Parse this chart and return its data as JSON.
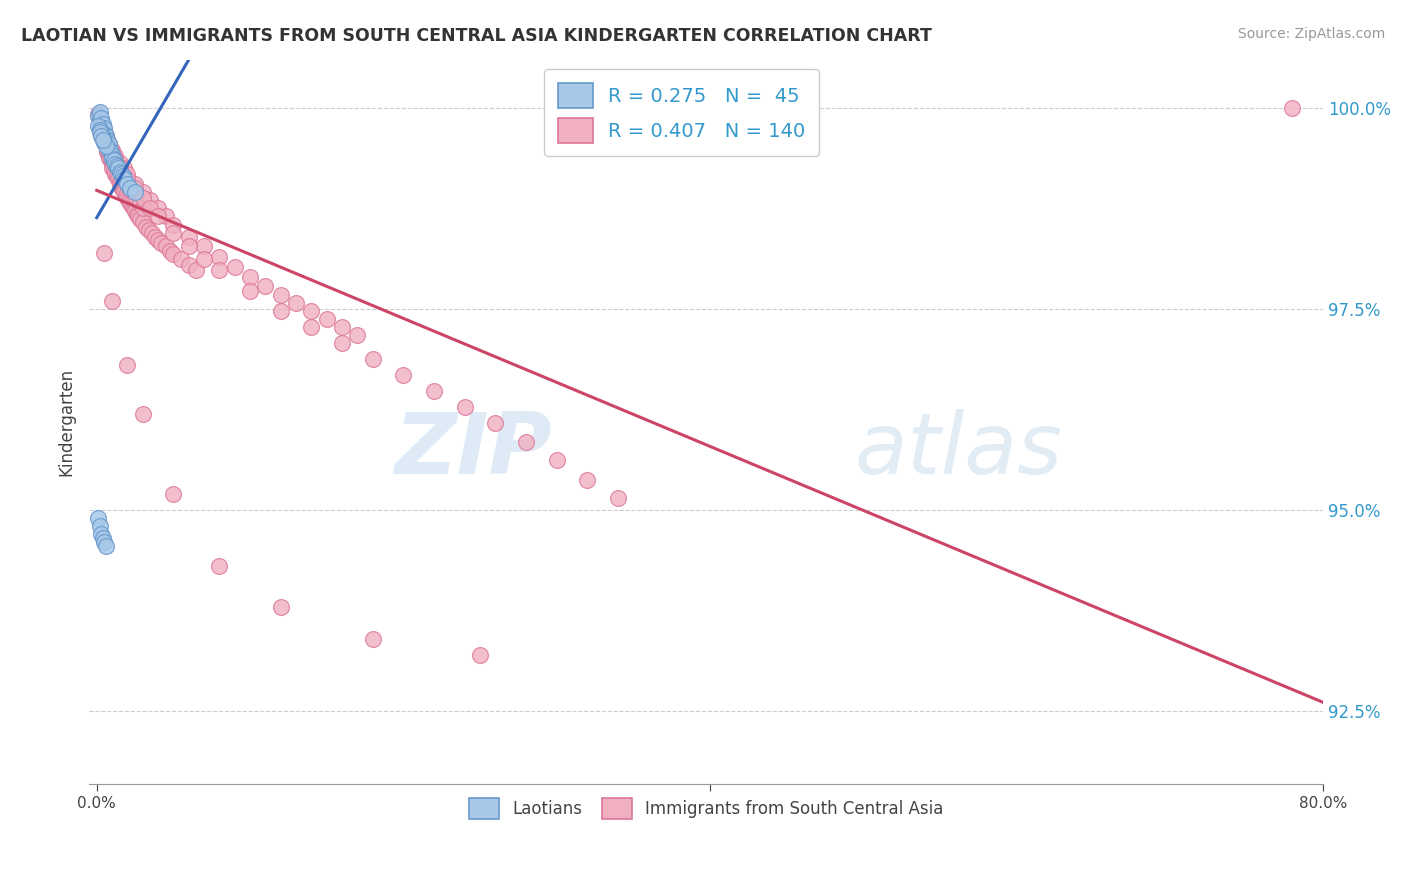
{
  "title": "LAOTIAN VS IMMIGRANTS FROM SOUTH CENTRAL ASIA KINDERGARTEN CORRELATION CHART",
  "source": "Source: ZipAtlas.com",
  "ylabel": "Kindergarten",
  "ytick_labels": [
    "92.5%",
    "95.0%",
    "97.5%",
    "100.0%"
  ],
  "ytick_values": [
    0.925,
    0.95,
    0.975,
    1.0
  ],
  "blue_R": 0.275,
  "blue_N": 45,
  "pink_R": 0.407,
  "pink_N": 140,
  "blue_color": "#a8c8e8",
  "pink_color": "#f0b0c0",
  "blue_edge": "#6699cc",
  "pink_edge": "#dd7799",
  "trend_blue": "#3366bb",
  "trend_pink": "#cc4466",
  "watermark_zip": "ZIP",
  "watermark_atlas": "atlas",
  "legend_blue_label": "Laotians",
  "legend_pink_label": "Immigrants from South Central Asia",
  "xlim": [
    -0.005,
    0.8
  ],
  "ylim": [
    0.916,
    1.006
  ],
  "blue_points_x": [
    0.001,
    0.002,
    0.002,
    0.003,
    0.003,
    0.003,
    0.004,
    0.004,
    0.005,
    0.005,
    0.006,
    0.006,
    0.007,
    0.007,
    0.008,
    0.008,
    0.009,
    0.01,
    0.01,
    0.011,
    0.012,
    0.013,
    0.014,
    0.015,
    0.016,
    0.017,
    0.018,
    0.02,
    0.022,
    0.025,
    0.001,
    0.002,
    0.003,
    0.004,
    0.005,
    0.006,
    0.002,
    0.003,
    0.004,
    0.001,
    0.002,
    0.003,
    0.004,
    0.005,
    0.006
  ],
  "blue_points_y": [
    0.999,
    0.9985,
    0.9995,
    0.9982,
    0.9988,
    0.9975,
    0.998,
    0.9972,
    0.9975,
    0.9968,
    0.9965,
    0.9958,
    0.996,
    0.9952,
    0.9955,
    0.9948,
    0.9945,
    0.9942,
    0.9938,
    0.9935,
    0.993,
    0.9928,
    0.9925,
    0.992,
    0.9918,
    0.9915,
    0.9912,
    0.9905,
    0.99,
    0.9895,
    0.9978,
    0.9972,
    0.9968,
    0.9962,
    0.9958,
    0.9952,
    0.997,
    0.9965,
    0.996,
    0.949,
    0.948,
    0.947,
    0.9465,
    0.946,
    0.9455
  ],
  "pink_points_x": [
    0.001,
    0.002,
    0.002,
    0.003,
    0.003,
    0.004,
    0.004,
    0.005,
    0.005,
    0.006,
    0.006,
    0.007,
    0.007,
    0.008,
    0.008,
    0.009,
    0.01,
    0.01,
    0.011,
    0.012,
    0.013,
    0.014,
    0.015,
    0.015,
    0.016,
    0.017,
    0.018,
    0.019,
    0.02,
    0.021,
    0.022,
    0.023,
    0.024,
    0.025,
    0.026,
    0.027,
    0.028,
    0.03,
    0.032,
    0.034,
    0.036,
    0.038,
    0.04,
    0.042,
    0.045,
    0.048,
    0.05,
    0.055,
    0.06,
    0.065,
    0.003,
    0.004,
    0.005,
    0.006,
    0.007,
    0.008,
    0.009,
    0.01,
    0.012,
    0.015,
    0.018,
    0.02,
    0.022,
    0.025,
    0.028,
    0.03,
    0.003,
    0.005,
    0.007,
    0.01,
    0.002,
    0.003,
    0.004,
    0.005,
    0.006,
    0.007,
    0.008,
    0.01,
    0.012,
    0.015,
    0.018,
    0.02,
    0.025,
    0.03,
    0.035,
    0.04,
    0.045,
    0.05,
    0.06,
    0.07,
    0.08,
    0.09,
    0.1,
    0.11,
    0.12,
    0.13,
    0.14,
    0.15,
    0.16,
    0.17,
    0.002,
    0.003,
    0.004,
    0.006,
    0.008,
    0.01,
    0.012,
    0.015,
    0.02,
    0.025,
    0.03,
    0.035,
    0.04,
    0.05,
    0.06,
    0.07,
    0.08,
    0.1,
    0.12,
    0.14,
    0.16,
    0.18,
    0.2,
    0.22,
    0.24,
    0.26,
    0.28,
    0.3,
    0.32,
    0.34,
    0.005,
    0.01,
    0.02,
    0.03,
    0.05,
    0.08,
    0.12,
    0.18,
    0.25,
    0.78
  ],
  "pink_points_y": [
    0.9992,
    0.9988,
    0.9985,
    0.9982,
    0.9978,
    0.9975,
    0.997,
    0.9968,
    0.9962,
    0.9958,
    0.9955,
    0.995,
    0.9945,
    0.9942,
    0.9938,
    0.9935,
    0.993,
    0.9925,
    0.9922,
    0.9918,
    0.9915,
    0.9912,
    0.9908,
    0.9905,
    0.9902,
    0.9898,
    0.9895,
    0.9892,
    0.9888,
    0.9885,
    0.9882,
    0.9878,
    0.9875,
    0.9872,
    0.9868,
    0.9865,
    0.9862,
    0.9858,
    0.9852,
    0.9848,
    0.9845,
    0.984,
    0.9836,
    0.9832,
    0.9828,
    0.9822,
    0.9818,
    0.9812,
    0.9805,
    0.9798,
    0.9975,
    0.997,
    0.9965,
    0.996,
    0.9955,
    0.995,
    0.9945,
    0.994,
    0.993,
    0.992,
    0.991,
    0.9905,
    0.9898,
    0.989,
    0.9882,
    0.9875,
    0.9968,
    0.9958,
    0.9948,
    0.9935,
    0.9985,
    0.998,
    0.9975,
    0.997,
    0.9965,
    0.996,
    0.9955,
    0.9948,
    0.994,
    0.9932,
    0.9925,
    0.9918,
    0.9905,
    0.9895,
    0.9885,
    0.9875,
    0.9865,
    0.9855,
    0.984,
    0.9828,
    0.9815,
    0.9802,
    0.979,
    0.9778,
    0.9768,
    0.9758,
    0.9748,
    0.9738,
    0.9728,
    0.9718,
    0.9988,
    0.9982,
    0.9975,
    0.9965,
    0.9955,
    0.9945,
    0.9936,
    0.9925,
    0.9912,
    0.99,
    0.9888,
    0.9876,
    0.9865,
    0.9845,
    0.9828,
    0.9812,
    0.9798,
    0.9772,
    0.9748,
    0.9728,
    0.9708,
    0.9688,
    0.9668,
    0.9648,
    0.9628,
    0.9608,
    0.9585,
    0.9562,
    0.9538,
    0.9515,
    0.982,
    0.976,
    0.968,
    0.962,
    0.952,
    0.943,
    0.938,
    0.934,
    0.932,
    1.0
  ]
}
